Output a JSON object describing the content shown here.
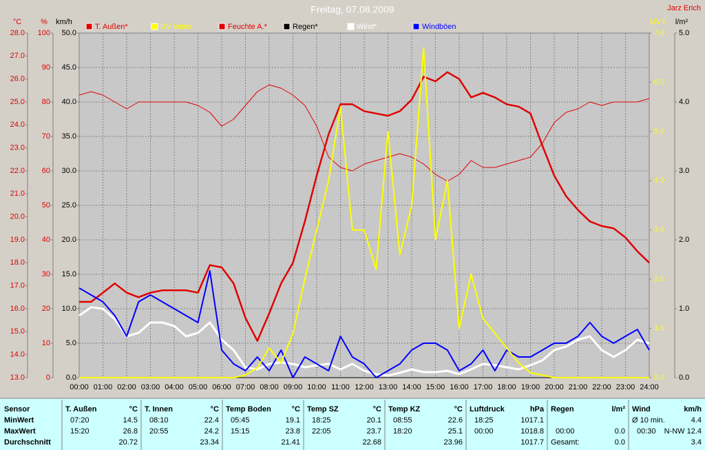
{
  "chart_data": {
    "type": "line",
    "title": "Freitag, 07.08.2009",
    "author": "Jarz Erich",
    "xlim": [
      0,
      24
    ],
    "xticks": [
      {
        "value": 0,
        "label": "00:00"
      },
      {
        "value": 1,
        "label": "01:00"
      },
      {
        "value": 2,
        "label": "02:00"
      },
      {
        "value": 3,
        "label": "03:00"
      },
      {
        "value": 4,
        "label": "04:00"
      },
      {
        "value": 5,
        "label": "05:00"
      },
      {
        "value": 6,
        "label": "06:00"
      },
      {
        "value": 7,
        "label": "07:00"
      },
      {
        "value": 8,
        "label": "08:00"
      },
      {
        "value": 9,
        "label": "09:00"
      },
      {
        "value": 10,
        "label": "10:00"
      },
      {
        "value": 11,
        "label": "11:00"
      },
      {
        "value": 12,
        "label": "12:00"
      },
      {
        "value": 13,
        "label": "13:00"
      },
      {
        "value": 14,
        "label": "14:00"
      },
      {
        "value": 15,
        "label": "15:00"
      },
      {
        "value": 16,
        "label": "16:00"
      },
      {
        "value": 17,
        "label": "17:00"
      },
      {
        "value": 18,
        "label": "18:00"
      },
      {
        "value": 19,
        "label": "19:00"
      },
      {
        "value": 20,
        "label": "20:00"
      },
      {
        "value": 21,
        "label": "21:00"
      },
      {
        "value": 22,
        "label": "22:00"
      },
      {
        "value": 23,
        "label": "23:00"
      },
      {
        "value": 24,
        "label": "24:00"
      }
    ],
    "grid": true,
    "axes": [
      {
        "label": "°C",
        "color": "#e00000",
        "lim": [
          13,
          28
        ],
        "ticks": [
          {
            "value": 13,
            "label": "13.0"
          },
          {
            "value": 14,
            "label": "14.0"
          },
          {
            "value": 15,
            "label": "15.0"
          },
          {
            "value": 16,
            "label": "16.0"
          },
          {
            "value": 17,
            "label": "17.0"
          },
          {
            "value": 18,
            "label": "18.0"
          },
          {
            "value": 19,
            "label": "19.0"
          },
          {
            "value": 20,
            "label": "20.0"
          },
          {
            "value": 21,
            "label": "21.0"
          },
          {
            "value": 22,
            "label": "22.0"
          },
          {
            "value": 23,
            "label": "23.0"
          },
          {
            "value": 24,
            "label": "24.0"
          },
          {
            "value": 25,
            "label": "25.0"
          },
          {
            "value": 26,
            "label": "26.0"
          },
          {
            "value": 27,
            "label": "27.0"
          },
          {
            "value": 28,
            "label": "28.0"
          }
        ]
      },
      {
        "label": "%",
        "color": "#e00000",
        "lim": [
          0,
          100
        ],
        "ticks": [
          0,
          10,
          20,
          30,
          40,
          50,
          60,
          70,
          80,
          90,
          100
        ]
      },
      {
        "label": "km/h",
        "color": "#000000",
        "lim": [
          0,
          50
        ],
        "grid": true,
        "ticks": [
          {
            "value": 0,
            "label": "0.0"
          },
          {
            "value": 5,
            "label": "5.0"
          },
          {
            "value": 10,
            "label": "10.0"
          },
          {
            "value": 15,
            "label": "15.0"
          },
          {
            "value": 20,
            "label": "20.0"
          },
          {
            "value": 25,
            "label": "25.0"
          },
          {
            "value": 30,
            "label": "30.0"
          },
          {
            "value": 35,
            "label": "35.0"
          },
          {
            "value": 40,
            "label": "40.0"
          },
          {
            "value": 45,
            "label": "45.0"
          },
          {
            "value": 50,
            "label": "50.0"
          }
        ]
      },
      {
        "label": "UV-I",
        "color": "#ffff00",
        "lim": [
          0,
          7
        ],
        "ticks": [
          {
            "value": 0,
            "label": "0.0"
          },
          {
            "value": 1,
            "label": "1.0"
          },
          {
            "value": 2,
            "label": "2.0"
          },
          {
            "value": 3,
            "label": "3.0"
          },
          {
            "value": 4,
            "label": "4.0"
          },
          {
            "value": 5,
            "label": "5.0"
          },
          {
            "value": 6,
            "label": "6.0"
          },
          {
            "value": 7,
            "label": "7.0"
          }
        ]
      },
      {
        "label": "l/m²",
        "color": "#000000",
        "lim": [
          0,
          5
        ],
        "ticks": [
          {
            "value": 0,
            "label": "0.0"
          },
          {
            "value": 1,
            "label": "1.0"
          },
          {
            "value": 2,
            "label": "2.0"
          },
          {
            "value": 3,
            "label": "3.0"
          },
          {
            "value": 4,
            "label": "4.0"
          },
          {
            "value": 5,
            "label": "5.0"
          }
        ]
      }
    ],
    "x": [
      0,
      0.5,
      1,
      1.5,
      2,
      2.5,
      3,
      3.5,
      4,
      4.5,
      5,
      5.5,
      6,
      6.5,
      7,
      7.5,
      8,
      8.5,
      9,
      9.5,
      10,
      10.5,
      11,
      11.5,
      12,
      12.5,
      13,
      13.5,
      14,
      14.5,
      15,
      15.5,
      16,
      16.5,
      17,
      17.5,
      18,
      18.5,
      19,
      19.5,
      20,
      20.5,
      21,
      21.5,
      22,
      22.5,
      23,
      23.5,
      24
    ],
    "series": [
      {
        "name": "T. Außen*",
        "color": "#e00000",
        "axis": 0,
        "width": 2.5,
        "values": [
          16.3,
          16.3,
          16.7,
          17.1,
          16.7,
          16.5,
          16.7,
          16.8,
          16.8,
          16.8,
          16.7,
          17.9,
          17.8,
          17.1,
          15.6,
          14.6,
          15.8,
          17.1,
          18.0,
          19.8,
          21.8,
          23.6,
          24.9,
          24.9,
          24.6,
          24.5,
          24.4,
          24.6,
          25.1,
          26.1,
          25.9,
          26.3,
          26.0,
          25.2,
          25.4,
          25.2,
          24.9,
          24.8,
          24.5,
          23.1,
          21.8,
          20.9,
          20.3,
          19.8,
          19.6,
          19.5,
          19.1,
          18.5,
          18.0
        ]
      },
      {
        "name": "UV Index",
        "color": "#ffff00",
        "axis": 3,
        "width": 2,
        "values": [
          0,
          0,
          0,
          0,
          0,
          0,
          0,
          0,
          0,
          0,
          0,
          0,
          0,
          0,
          0.05,
          0.2,
          0.6,
          0.3,
          0.9,
          2.0,
          3.0,
          4.0,
          5.5,
          3.0,
          3.0,
          2.2,
          5.0,
          2.5,
          3.5,
          6.7,
          2.8,
          4.0,
          1.0,
          2.1,
          1.2,
          0.9,
          0.6,
          0.3,
          0.1,
          0.05,
          0,
          0,
          0,
          0,
          0,
          0,
          0,
          0,
          0
        ]
      },
      {
        "name": "Feuchte A.*",
        "color": "#e00000",
        "axis": 1,
        "width": 1,
        "values": [
          82,
          83,
          82,
          80,
          78,
          80,
          80,
          80,
          80,
          80,
          79,
          77,
          73,
          75,
          79,
          83,
          85,
          84,
          82,
          79,
          73,
          64,
          61,
          60,
          62,
          63,
          64,
          65,
          64,
          62,
          59,
          57,
          59,
          63,
          61,
          61,
          62,
          63,
          64,
          68,
          74,
          77,
          78,
          80,
          79,
          80,
          80,
          80,
          81
        ]
      },
      {
        "name": "Regen*",
        "color": "#000000",
        "axis": 4,
        "width": 1,
        "values": [
          0,
          0,
          0,
          0,
          0,
          0,
          0,
          0,
          0,
          0,
          0,
          0,
          0,
          0,
          0,
          0,
          0,
          0,
          0,
          0,
          0,
          0,
          0,
          0,
          0,
          0,
          0,
          0,
          0,
          0,
          0,
          0,
          0,
          0,
          0,
          0,
          0,
          0,
          0,
          0,
          0,
          0,
          0,
          0,
          0,
          0,
          0,
          0,
          0
        ]
      },
      {
        "name": "Wind*",
        "color": "#ffffff",
        "axis": 2,
        "width": 3,
        "values": [
          9.0,
          10.2,
          10.0,
          8.5,
          6.0,
          6.5,
          8.0,
          8.0,
          7.5,
          6.0,
          6.5,
          8.0,
          5.5,
          4.0,
          1.5,
          1.2,
          2.0,
          2.2,
          2.0,
          1.5,
          1.8,
          2.0,
          1.2,
          2.0,
          1.0,
          0.5,
          0.3,
          0.7,
          1.2,
          0.8,
          0.8,
          1.0,
          0.5,
          1.2,
          2.0,
          1.8,
          1.5,
          1.2,
          1.8,
          2.5,
          4.0,
          4.5,
          5.5,
          6.0,
          4.0,
          3.0,
          4.0,
          5.5,
          5.0
        ]
      },
      {
        "name": "Windböen",
        "color": "#0000ff",
        "axis": 2,
        "width": 2,
        "values": [
          13,
          12,
          11,
          9,
          6,
          11,
          12,
          11,
          10,
          9,
          8,
          15.5,
          4,
          2,
          1,
          3,
          1,
          4,
          0,
          3,
          2,
          1,
          6,
          3,
          2,
          0,
          1,
          2,
          4,
          5,
          5,
          4,
          1,
          2,
          4,
          1,
          4,
          3,
          3,
          4,
          5,
          5,
          6,
          8,
          6,
          5,
          6,
          7,
          4
        ]
      }
    ]
  },
  "table": {
    "row_labels": [
      "Sensor",
      "MinWert",
      "MaxWert",
      "Durchschnitt"
    ],
    "columns": [
      {
        "name": "T. Außen",
        "unit": "°C",
        "min": {
          "time": "07:20",
          "value": "14.5"
        },
        "max": {
          "time": "15:20",
          "value": "26.8"
        },
        "avg": {
          "value": "20.72"
        }
      },
      {
        "name": "T. Innen",
        "unit": "°C",
        "min": {
          "time": "08:10",
          "value": "22.4"
        },
        "max": {
          "time": "20:55",
          "value": "24.2"
        },
        "avg": {
          "value": "23.34"
        }
      },
      {
        "name": "Temp Boden",
        "unit": "°C",
        "min": {
          "time": "05:45",
          "value": "19.1"
        },
        "max": {
          "time": "15:15",
          "value": "23.8"
        },
        "avg": {
          "value": "21.41"
        }
      },
      {
        "name": "Temp SZ",
        "unit": "°C",
        "min": {
          "time": "18:25",
          "value": "20.1"
        },
        "max": {
          "time": "22:05",
          "value": "23.7"
        },
        "avg": {
          "value": "22.68"
        }
      },
      {
        "name": "Temp KZ",
        "unit": "°C",
        "min": {
          "time": "08:55",
          "value": "22.6"
        },
        "max": {
          "time": "18:20",
          "value": "25.1"
        },
        "avg": {
          "value": "23.96"
        }
      },
      {
        "name": "Luftdruck",
        "unit": "hPa",
        "min": {
          "time": "18:25",
          "value": "1017.1"
        },
        "max": {
          "time": "00:00",
          "value": "1018.8"
        },
        "avg": {
          "value": "1017.7"
        }
      },
      {
        "name": "Regen",
        "unit": "l/m²",
        "max": {
          "time": "00:00",
          "value": "0.0"
        },
        "avg": {
          "label": "Gesamt:",
          "value": "0.0"
        }
      },
      {
        "name": "Wind",
        "unit": "km/h",
        "min": {
          "label": "Ø 10 min.",
          "value": "4.4"
        },
        "max": {
          "time": "00:30",
          "value": "N-NW 12.4"
        },
        "avg": {
          "value": "3.4"
        }
      }
    ]
  }
}
